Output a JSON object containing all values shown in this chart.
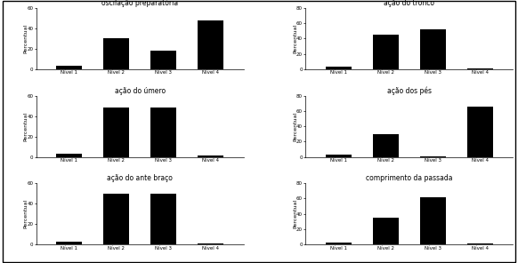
{
  "subplots": [
    {
      "title": "oscilação preparatória",
      "values": [
        3,
        30,
        18,
        48
      ],
      "ylim": [
        0,
        60
      ],
      "yticks": [
        0,
        20,
        40,
        60
      ]
    },
    {
      "title": "ação do tronco",
      "values": [
        3,
        45,
        52,
        1
      ],
      "ylim": [
        0,
        80
      ],
      "yticks": [
        0,
        20,
        40,
        60,
        80
      ]
    },
    {
      "title": "ação do úmero",
      "values": [
        3,
        48,
        48,
        1
      ],
      "ylim": [
        0,
        60
      ],
      "yticks": [
        0,
        20,
        40,
        60
      ]
    },
    {
      "title": "ação dos pés",
      "values": [
        3,
        30,
        1,
        65
      ],
      "ylim": [
        0,
        80
      ],
      "yticks": [
        0,
        20,
        40,
        60,
        80
      ]
    },
    {
      "title": "ação do ante braço",
      "values": [
        3,
        50,
        50,
        1
      ],
      "ylim": [
        0,
        60
      ],
      "yticks": [
        0,
        20,
        40,
        60
      ]
    },
    {
      "title": "comprimento da passada",
      "values": [
        3,
        35,
        62,
        1
      ],
      "ylim": [
        0,
        80
      ],
      "yticks": [
        0,
        20,
        40,
        60,
        80
      ]
    }
  ],
  "categories": [
    "Nível 1",
    "Nível 2",
    "Nível 3",
    "Nível 4"
  ],
  "bar_color": "#000000",
  "ylabel": "Percentual",
  "background_color": "#ffffff",
  "outer_bg": "#ffffff",
  "title_fontsize": 5.5,
  "label_fontsize": 4.5,
  "tick_fontsize": 4.0
}
